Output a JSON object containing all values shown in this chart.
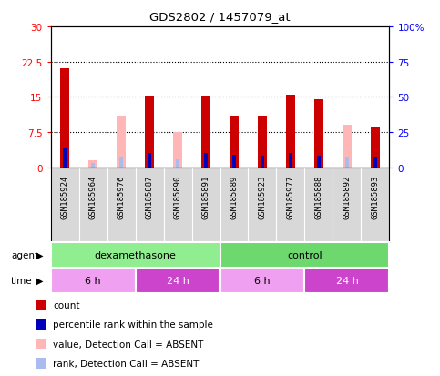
{
  "title": "GDS2802 / 1457079_at",
  "samples": [
    "GSM185924",
    "GSM185964",
    "GSM185976",
    "GSM185887",
    "GSM185890",
    "GSM185891",
    "GSM185889",
    "GSM185923",
    "GSM185977",
    "GSM185888",
    "GSM185892",
    "GSM185893"
  ],
  "count_values": [
    21.0,
    0.0,
    0.0,
    15.3,
    0.0,
    15.3,
    11.0,
    11.0,
    15.5,
    14.5,
    0.0,
    8.7
  ],
  "absent_value_values": [
    0.0,
    1.5,
    11.0,
    0.0,
    7.5,
    0.0,
    0.0,
    0.0,
    0.0,
    0.0,
    9.0,
    0.0
  ],
  "rank_values": [
    13.5,
    0.0,
    0.0,
    10.5,
    0.0,
    10.0,
    9.0,
    8.5,
    10.5,
    8.5,
    0.0,
    7.5
  ],
  "absent_rank_values": [
    0.0,
    3.0,
    7.5,
    0.0,
    5.5,
    0.0,
    0.0,
    0.0,
    0.0,
    0.0,
    7.5,
    0.0
  ],
  "ylim_left": [
    0,
    30
  ],
  "yticks_left": [
    0,
    7.5,
    15,
    22.5,
    30
  ],
  "ytick_labels_left": [
    "0",
    "7.5",
    "15",
    "22.5",
    "30"
  ],
  "ytick_labels_right": [
    "0",
    "25",
    "50",
    "75",
    "100%"
  ],
  "agent_labels": [
    {
      "label": "dexamethasone",
      "start": 0,
      "end": 6,
      "color": "#90ee90"
    },
    {
      "label": "control",
      "start": 6,
      "end": 12,
      "color": "#6dd86d"
    }
  ],
  "time_labels": [
    {
      "label": "6 h",
      "start": 0,
      "end": 3,
      "color": "#f0a0f0"
    },
    {
      "label": "24 h",
      "start": 3,
      "end": 6,
      "color": "#cc44cc"
    },
    {
      "label": "6 h",
      "start": 6,
      "end": 9,
      "color": "#f0a0f0"
    },
    {
      "label": "24 h",
      "start": 9,
      "end": 12,
      "color": "#cc44cc"
    }
  ],
  "bar_width": 0.3,
  "rank_bar_width": 0.12,
  "count_color": "#cc0000",
  "absent_value_color": "#ffb6b6",
  "rank_color": "#0000bb",
  "absent_rank_color": "#aabbee",
  "legend_items": [
    {
      "color": "#cc0000",
      "label": "count",
      "marker": "s"
    },
    {
      "color": "#0000bb",
      "label": "percentile rank within the sample",
      "marker": "s"
    },
    {
      "color": "#ffb6b6",
      "label": "value, Detection Call = ABSENT",
      "marker": "s"
    },
    {
      "color": "#aabbee",
      "label": "rank, Detection Call = ABSENT",
      "marker": "s"
    }
  ]
}
